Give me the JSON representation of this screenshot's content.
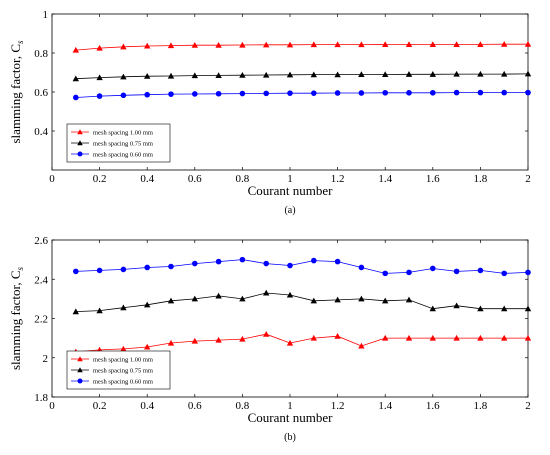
{
  "chart_data": [
    {
      "type": "line",
      "caption": "(a)",
      "xlabel": "Courant number",
      "ylabel": "slamming factor, C",
      "ylabel_sub": "s",
      "xlim": [
        0,
        2
      ],
      "ylim": [
        0.2,
        1.0
      ],
      "xticks": [
        "0",
        "0.2",
        "0.4",
        "0.6",
        "0.8",
        "1",
        "1.2",
        "1.4",
        "1.6",
        "1.8",
        "2"
      ],
      "yticks": [
        "0.4",
        "0.6",
        "0.8",
        "1"
      ],
      "legend_position": "bottom-left",
      "x": [
        0.1,
        0.2,
        0.3,
        0.4,
        0.5,
        0.6,
        0.7,
        0.8,
        0.9,
        1.0,
        1.1,
        1.2,
        1.3,
        1.4,
        1.5,
        1.6,
        1.7,
        1.8,
        1.9,
        2.0
      ],
      "series": [
        {
          "name": "mesh spacing 1.00 mm",
          "color": "#ff0000",
          "marker": "triangle",
          "values": [
            0.815,
            0.825,
            0.832,
            0.836,
            0.838,
            0.84,
            0.84,
            0.841,
            0.842,
            0.842,
            0.843,
            0.843,
            0.843,
            0.844,
            0.844,
            0.844,
            0.844,
            0.844,
            0.845,
            0.845
          ]
        },
        {
          "name": "mesh spacing 0.75 mm",
          "color": "#000000",
          "marker": "triangle",
          "values": [
            0.668,
            0.674,
            0.678,
            0.681,
            0.682,
            0.684,
            0.685,
            0.686,
            0.687,
            0.688,
            0.689,
            0.689,
            0.69,
            0.69,
            0.691,
            0.691,
            0.692,
            0.692,
            0.692,
            0.693
          ]
        },
        {
          "name": "mesh spacing 0.60 mm",
          "color": "#0000ff",
          "marker": "circle",
          "values": [
            0.572,
            0.579,
            0.583,
            0.586,
            0.589,
            0.59,
            0.591,
            0.592,
            0.593,
            0.594,
            0.594,
            0.595,
            0.595,
            0.596,
            0.596,
            0.596,
            0.597,
            0.597,
            0.597,
            0.597
          ]
        }
      ]
    },
    {
      "type": "line",
      "caption": "(b)",
      "xlabel": "Courant number",
      "ylabel": "slamming factor, C",
      "ylabel_sub": "s",
      "xlim": [
        0,
        2
      ],
      "ylim": [
        1.8,
        2.6
      ],
      "xticks": [
        "0",
        "0.2",
        "0.4",
        "0.6",
        "0.8",
        "1",
        "1.2",
        "1.4",
        "1.6",
        "1.8",
        "2"
      ],
      "yticks": [
        "1.8",
        "2",
        "2.2",
        "2.4",
        "2.6"
      ],
      "legend_position": "bottom-left",
      "x": [
        0.1,
        0.2,
        0.3,
        0.4,
        0.5,
        0.6,
        0.7,
        0.8,
        0.9,
        1.0,
        1.1,
        1.2,
        1.3,
        1.4,
        1.5,
        1.6,
        1.7,
        1.8,
        1.9,
        2.0
      ],
      "series": [
        {
          "name": "mesh spacing 1.00 mm",
          "color": "#ff0000",
          "marker": "triangle",
          "values": [
            2.03,
            2.04,
            2.045,
            2.055,
            2.075,
            2.085,
            2.09,
            2.095,
            2.12,
            2.075,
            2.1,
            2.11,
            2.06,
            2.1,
            2.1,
            2.1,
            2.1,
            2.1,
            2.1,
            2.1
          ]
        },
        {
          "name": "mesh spacing 0.75 mm",
          "color": "#000000",
          "marker": "triangle",
          "values": [
            2.235,
            2.24,
            2.255,
            2.27,
            2.29,
            2.3,
            2.315,
            2.3,
            2.33,
            2.32,
            2.29,
            2.295,
            2.3,
            2.29,
            2.295,
            2.25,
            2.265,
            2.25,
            2.25,
            2.25
          ]
        },
        {
          "name": "mesh spacing 0.60 mm",
          "color": "#0000ff",
          "marker": "circle",
          "values": [
            2.44,
            2.445,
            2.45,
            2.46,
            2.465,
            2.48,
            2.49,
            2.5,
            2.48,
            2.47,
            2.495,
            2.49,
            2.46,
            2.43,
            2.435,
            2.455,
            2.44,
            2.445,
            2.43,
            2.435
          ]
        }
      ]
    }
  ]
}
